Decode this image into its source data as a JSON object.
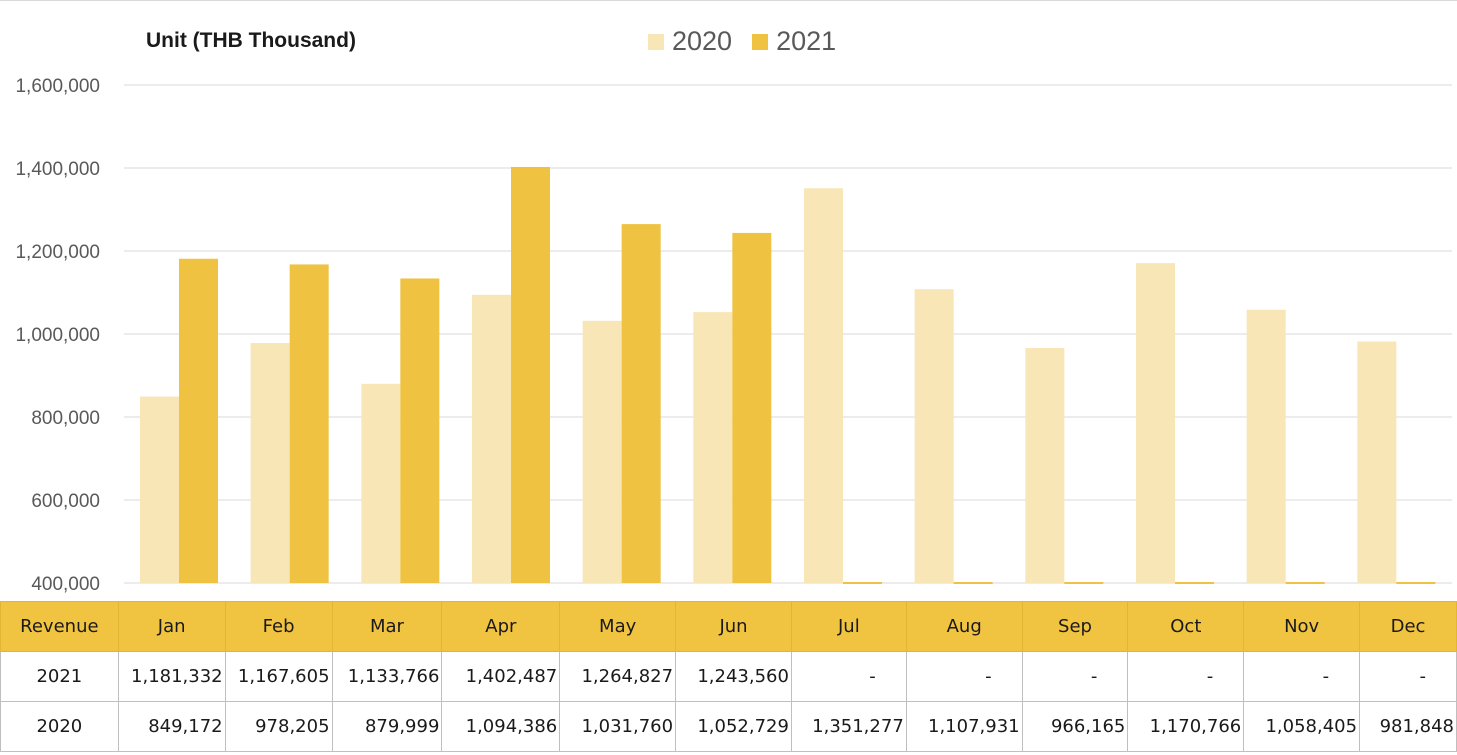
{
  "colors": {
    "series_2020": "#f9e6b6",
    "series_2021": "#efc241",
    "header_bg": "#f0c341",
    "grid": "#d9d9d9",
    "axis_text": "#595959"
  },
  "chart_data": {
    "type": "bar",
    "title": "",
    "unit_label": "Unit (THB  Thousand)",
    "categories": [
      "Jan",
      "Feb",
      "Mar",
      "Apr",
      "May",
      "Jun",
      "Jul",
      "Aug",
      "Sep",
      "Oct",
      "Nov",
      "Dec"
    ],
    "series": [
      {
        "name": "2020",
        "values": [
          849172,
          978205,
          879999,
          1094386,
          1031760,
          1052729,
          1351277,
          1107931,
          966165,
          1170766,
          1058405,
          981848
        ]
      },
      {
        "name": "2021",
        "values": [
          1181332,
          1167605,
          1133766,
          1402487,
          1264827,
          1243560,
          null,
          null,
          null,
          null,
          null,
          null
        ]
      }
    ],
    "ylim": [
      400000,
      1600000
    ],
    "yticks": [
      "400,000",
      "600,000",
      "800,000",
      "1,000,000",
      "1,200,000",
      "1,400,000",
      "1,600,000"
    ],
    "grid": true,
    "legend_position": "top-center"
  },
  "table": {
    "header_label": "Revenue",
    "months": [
      "Jan",
      "Feb",
      "Mar",
      "Apr",
      "May",
      "Jun",
      "Jul",
      "Aug",
      "Sep",
      "Oct",
      "Nov",
      "Dec"
    ],
    "rows": [
      {
        "label": "2021",
        "cells": [
          "1,181,332",
          "1,167,605",
          "1,133,766",
          "1,402,487",
          "1,264,827",
          "1,243,560",
          "-",
          "-",
          "-",
          "-",
          "-",
          "-"
        ]
      },
      {
        "label": "2020",
        "cells": [
          "849,172",
          "978,205",
          "879,999",
          "1,094,386",
          "1,031,760",
          "1,052,729",
          "1,351,277",
          "1,107,931",
          "966,165",
          "1,170,766",
          "1,058,405",
          "981,848"
        ]
      }
    ]
  }
}
